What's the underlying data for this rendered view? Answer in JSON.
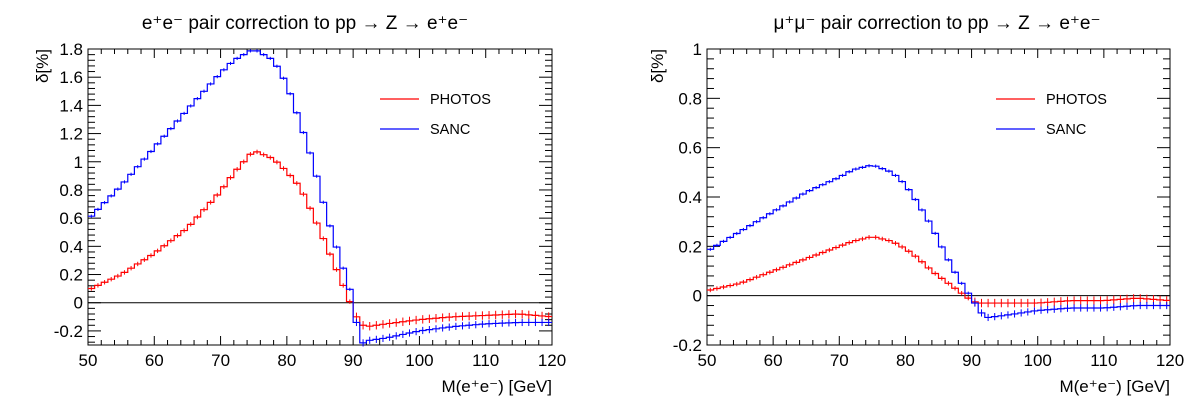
{
  "chart_data": [
    {
      "type": "line",
      "title": "e⁺e⁻ pair correction to pp → Z → e⁺e⁻",
      "xlabel": "M(e⁺e⁻) [GeV]",
      "ylabel": "δ[%]",
      "xlim": [
        50,
        120
      ],
      "ylim": [
        -0.3,
        1.8
      ],
      "xticks": [
        50,
        60,
        70,
        80,
        90,
        100,
        110,
        120
      ],
      "xtick_labels": [
        "50",
        "60",
        "70",
        "80",
        "90",
        "100",
        "110",
        "120"
      ],
      "yticks": [
        -0.2,
        0,
        0.2,
        0.4,
        0.6,
        0.8,
        1,
        1.2,
        1.4,
        1.6,
        1.8
      ],
      "ytick_labels": [
        "-0.2",
        "0",
        "0.2",
        "0.4",
        "0.6",
        "0.8",
        "1",
        "1.2",
        "1.4",
        "1.6",
        "1.8"
      ],
      "legend_position": "top-right",
      "grid": false,
      "x": [
        50,
        55,
        60,
        65,
        70,
        72,
        75,
        78,
        80,
        82,
        84,
        86,
        88,
        90,
        91,
        92,
        95,
        100,
        105,
        110,
        115,
        120
      ],
      "series": [
        {
          "name": "PHOTOS",
          "color": "#ff0000",
          "values": [
            0.09,
            0.2,
            0.35,
            0.53,
            0.79,
            0.92,
            1.08,
            1.02,
            0.93,
            0.82,
            0.62,
            0.4,
            0.18,
            -0.05,
            -0.15,
            -0.17,
            -0.15,
            -0.12,
            -0.1,
            -0.09,
            -0.08,
            -0.1
          ]
        },
        {
          "name": "SANC",
          "color": "#0000ff",
          "values": [
            0.59,
            0.83,
            1.1,
            1.37,
            1.63,
            1.72,
            1.8,
            1.72,
            1.55,
            1.28,
            0.99,
            0.62,
            0.32,
            0.02,
            -0.3,
            -0.27,
            -0.25,
            -0.2,
            -0.17,
            -0.15,
            -0.14,
            -0.14
          ]
        }
      ]
    },
    {
      "type": "line",
      "title": "μ⁺μ⁻ pair correction to pp → Z → e⁺e⁻",
      "xlabel": "M(e⁺e⁻) [GeV]",
      "ylabel": "δ[%]",
      "xlim": [
        50,
        120
      ],
      "ylim": [
        -0.2,
        1
      ],
      "xticks": [
        50,
        60,
        70,
        80,
        90,
        100,
        110,
        120
      ],
      "xtick_labels": [
        "50",
        "60",
        "70",
        "80",
        "90",
        "100",
        "110",
        "120"
      ],
      "yticks": [
        -0.2,
        0,
        0.2,
        0.4,
        0.6,
        0.8,
        1
      ],
      "ytick_labels": [
        "-0.2",
        "0",
        "0.2",
        "0.4",
        "0.6",
        "0.8",
        "1"
      ],
      "legend_position": "top-right",
      "grid": false,
      "x": [
        50,
        55,
        60,
        65,
        70,
        72,
        75,
        78,
        80,
        82,
        84,
        86,
        88,
        90,
        91,
        92,
        95,
        100,
        105,
        110,
        115,
        120
      ],
      "series": [
        {
          "name": "PHOTOS",
          "color": "#ff0000",
          "values": [
            0.02,
            0.05,
            0.1,
            0.15,
            0.2,
            0.22,
            0.24,
            0.22,
            0.19,
            0.15,
            0.1,
            0.06,
            0.02,
            -0.02,
            -0.03,
            -0.03,
            -0.03,
            -0.03,
            -0.02,
            -0.02,
            -0.01,
            -0.02
          ]
        },
        {
          "name": "SANC",
          "color": "#0000ff",
          "values": [
            0.18,
            0.26,
            0.34,
            0.42,
            0.48,
            0.51,
            0.53,
            0.5,
            0.45,
            0.37,
            0.28,
            0.17,
            0.07,
            -0.01,
            -0.05,
            -0.09,
            -0.08,
            -0.06,
            -0.05,
            -0.05,
            -0.04,
            -0.04
          ]
        }
      ]
    }
  ]
}
